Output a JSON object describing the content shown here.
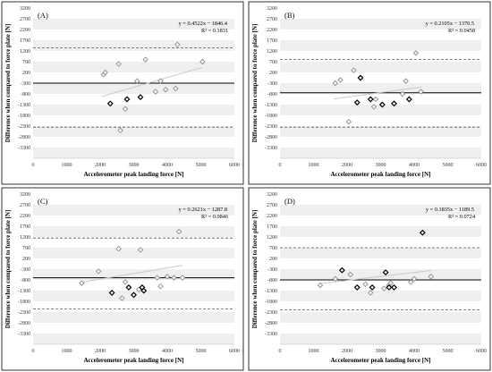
{
  "figure": {
    "background": "#ffffff",
    "band_color": "#efefef"
  },
  "chart_data": [
    {
      "type": "scatter",
      "label": "(A)",
      "xlabel": "Accelerometer peak landing force [N]",
      "ylabel": "Difference when compared to force plate [N]",
      "xlim": [
        0,
        6000
      ],
      "ylim": [
        -3800,
        3200
      ],
      "xticks": [
        0,
        1000,
        2000,
        3000,
        4000,
        5000,
        6000
      ],
      "yticks": [
        3200,
        2700,
        2200,
        1700,
        1200,
        700,
        200,
        -300,
        -800,
        -1300,
        -1800,
        -2300,
        -2800,
        -3300,
        -3800
      ],
      "ytick_labels": [
        "3200",
        "2700",
        "2200",
        "1700",
        "1200",
        "700",
        "200",
        "-300",
        "-800",
        "-1300",
        "-1800",
        "-2300",
        "-2800",
        "-3300",
        ""
      ],
      "equation": "y = 0.4522x − 1846.4",
      "r_squared": "R² = 0.1831",
      "mean_bias": -300,
      "limits_of_agreement": [
        1350,
        -2350
      ],
      "trend": {
        "slope": 0.4522,
        "intercept": -1846.4,
        "x_range": [
          2050,
          5050
        ]
      },
      "series": [
        {
          "marker": "open-diamond",
          "color": "#8c8c8c",
          "points": [
            [
              2100,
              100
            ],
            [
              2150,
              200
            ],
            [
              2550,
              600
            ],
            [
              2750,
              -1500
            ],
            [
              3350,
              800
            ],
            [
              3100,
              -200
            ],
            [
              3650,
              -700
            ],
            [
              3800,
              -200
            ],
            [
              3950,
              -600
            ],
            [
              4250,
              -550
            ],
            [
              5050,
              700
            ],
            [
              4300,
              1500
            ],
            [
              2600,
              -2500
            ]
          ]
        },
        {
          "marker": "open-diamond",
          "color": "#000000",
          "points": [
            [
              2300,
              -1250
            ],
            [
              2800,
              -1050
            ],
            [
              3200,
              -950
            ]
          ]
        }
      ]
    },
    {
      "type": "scatter",
      "label": "(B)",
      "xlabel": "Accelerometer peak landing force [N]",
      "ylabel": "Difference when compared to force plate [N]",
      "xlim": [
        0,
        6000
      ],
      "ylim": [
        -3800,
        3200
      ],
      "xticks": [
        0,
        1000,
        2000,
        3000,
        4000,
        5000,
        6000
      ],
      "yticks": [
        3200,
        2700,
        2200,
        1700,
        1200,
        700,
        200,
        -300,
        -800,
        -1300,
        -1800,
        -2300,
        -2800,
        -3300,
        -3800
      ],
      "ytick_labels": [
        "3200",
        "2700",
        "2200",
        "1700",
        "1200",
        "700",
        "200",
        "-300",
        "-800",
        "-1300",
        "-1800",
        "-2300",
        "-2800",
        "-3300",
        ""
      ],
      "equation": "y = 0.2105x − 1370.5",
      "r_squared": "R² = 0.0458",
      "mean_bias": -750,
      "limits_of_agreement": [
        800,
        -2350
      ],
      "trend": {
        "slope": 0.2105,
        "intercept": -1370.5,
        "x_range": [
          1600,
          4200
        ]
      },
      "series": [
        {
          "marker": "open-diamond",
          "color": "#8c8c8c",
          "points": [
            [
              1650,
              -300
            ],
            [
              1800,
              -150
            ],
            [
              2200,
              300
            ],
            [
              2050,
              -2100
            ],
            [
              2800,
              -1400
            ],
            [
              2850,
              -1050
            ],
            [
              3650,
              -800
            ],
            [
              3750,
              -200
            ],
            [
              4050,
              1100
            ],
            [
              4200,
              -700
            ]
          ]
        },
        {
          "marker": "open-diamond",
          "color": "#000000",
          "points": [
            [
              2300,
              -1200
            ],
            [
              2400,
              -50
            ],
            [
              2700,
              -1050
            ],
            [
              3050,
              -1300
            ],
            [
              3400,
              -1250
            ],
            [
              3850,
              -1050
            ]
          ]
        }
      ]
    },
    {
      "type": "scatter",
      "label": "(C)",
      "xlabel": "Accelerometer peak landing force [N]",
      "ylabel": "Difference when compared to force plate [N]",
      "xlim": [
        0,
        6000
      ],
      "ylim": [
        -3800,
        3200
      ],
      "xticks": [
        0,
        1000,
        2000,
        3000,
        4000,
        5000,
        6000
      ],
      "yticks": [
        3200,
        2700,
        2200,
        1700,
        1200,
        700,
        200,
        -300,
        -800,
        -1300,
        -1800,
        -2300,
        -2800,
        -3300,
        -3800
      ],
      "ytick_labels": [
        "3200",
        "2700",
        "2200",
        "1700",
        "1200",
        "700",
        "200",
        "-300",
        "-800",
        "-1300",
        "-1800",
        "-2300",
        "-2800",
        "-3300",
        ""
      ],
      "equation": "y = 0.2621x − 1287.8",
      "r_squared": "R² = 0.0846",
      "mean_bias": -700,
      "limits_of_agreement": [
        1150,
        -2150
      ],
      "trend": {
        "slope": 0.2621,
        "intercept": -1287.8,
        "x_range": [
          1450,
          4450
        ]
      },
      "series": [
        {
          "marker": "open-diamond",
          "color": "#8c8c8c",
          "points": [
            [
              1450,
              -950
            ],
            [
              1950,
              -400
            ],
            [
              2550,
              650
            ],
            [
              2650,
              -1650
            ],
            [
              2750,
              -900
            ],
            [
              3200,
              600
            ],
            [
              3150,
              -1250
            ],
            [
              3700,
              -700
            ],
            [
              3800,
              -1100
            ],
            [
              4000,
              -650
            ],
            [
              4200,
              -700
            ],
            [
              4350,
              1450
            ],
            [
              4450,
              -700
            ]
          ]
        },
        {
          "marker": "open-diamond",
          "color": "#000000",
          "points": [
            [
              2350,
              -1400
            ],
            [
              2850,
              -1150
            ],
            [
              3250,
              -1150
            ],
            [
              3300,
              -1300
            ],
            [
              3000,
              -1500
            ]
          ]
        }
      ]
    },
    {
      "type": "scatter",
      "label": "(D)",
      "xlabel": "Accelerometer peak landing force [N]",
      "ylabel": "Difference when compared to force plate [N]",
      "xlim": [
        0,
        6000
      ],
      "ylim": [
        -3800,
        3200
      ],
      "xticks": [
        0,
        1000,
        2000,
        3000,
        4000,
        5000,
        6000
      ],
      "yticks": [
        3200,
        2700,
        2200,
        1700,
        1200,
        700,
        200,
        -300,
        -800,
        -1300,
        -1800,
        -2300,
        -2800,
        -3300,
        -3800
      ],
      "ytick_labels": [
        "3200",
        "2700",
        "2200",
        "1700",
        "1200",
        "700",
        "200",
        "-300",
        "-800",
        "-1300",
        "-1800",
        "-2300",
        "-2800",
        "-3300",
        ""
      ],
      "equation": "y = 0.1835x − 1189.5",
      "r_squared": "R² = 0.0724",
      "mean_bias": -800,
      "limits_of_agreement": [
        700,
        -2200
      ],
      "trend": {
        "slope": 0.1835,
        "intercept": -1189.5,
        "x_range": [
          1200,
          4500
        ]
      },
      "series": [
        {
          "marker": "open-diamond",
          "color": "#8c8c8c",
          "points": [
            [
              1200,
              -1050
            ],
            [
              1650,
              -750
            ],
            [
              2100,
              -550
            ],
            [
              2550,
              -1000
            ],
            [
              2700,
              -1400
            ],
            [
              3100,
              -1200
            ],
            [
              3250,
              -1050
            ],
            [
              3300,
              -950
            ],
            [
              3900,
              -900
            ],
            [
              4000,
              -750
            ],
            [
              4500,
              -650
            ]
          ]
        },
        {
          "marker": "open-diamond",
          "color": "#000000",
          "points": [
            [
              1850,
              -350
            ],
            [
              2300,
              -1150
            ],
            [
              2750,
              -1150
            ],
            [
              3150,
              -450
            ],
            [
              3250,
              -1150
            ],
            [
              3400,
              -1150
            ],
            [
              4250,
              1400
            ]
          ]
        }
      ]
    }
  ]
}
